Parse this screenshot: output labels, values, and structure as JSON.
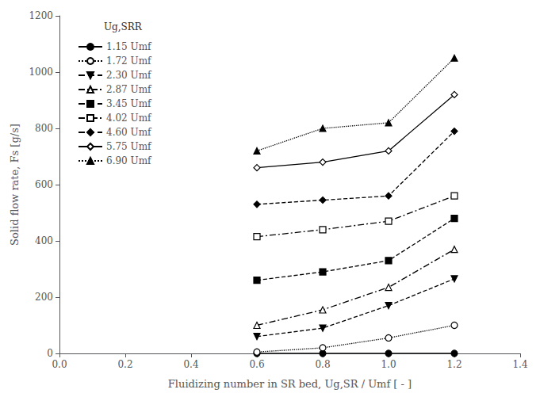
{
  "chart_data": {
    "type": "line",
    "x_label": "Fluidizing number in SR bed, Ug,SR / Umf [ - ]",
    "y_label": "Solid flow rate, Fs [g/s]",
    "annotations": [
      {
        "text": "Ug,SRR"
      }
    ],
    "x": [
      0.6,
      0.8,
      1.0,
      1.2
    ],
    "series": [
      {
        "name": "1.15 Umf",
        "color": "black",
        "marker": "circle",
        "line_style": "solid",
        "values": [
          0,
          0,
          0,
          0
        ]
      },
      {
        "name": "1.72 Umf",
        "color": "black",
        "marker": "circle_open",
        "line_style": "dotted",
        "values": [
          5,
          20,
          55,
          100
        ]
      },
      {
        "name": "2.30 Umf",
        "color": "black",
        "marker": "triangle_down",
        "line_style": "dashed",
        "values": [
          60,
          90,
          170,
          265
        ]
      },
      {
        "name": "2.87 Umf",
        "color": "black",
        "marker": "triangle_open",
        "line_style": "dashdot",
        "values": [
          100,
          155,
          235,
          370
        ]
      },
      {
        "name": "3.45 Umf",
        "color": "black",
        "marker": "square",
        "line_style": "dashed",
        "values": [
          260,
          290,
          330,
          480
        ]
      },
      {
        "name": "4.02 Umf",
        "color": "black",
        "marker": "square_open",
        "line_style": "dashdot",
        "values": [
          415,
          440,
          470,
          560
        ]
      },
      {
        "name": "4.60 Umf",
        "color": "black",
        "marker": "diamond",
        "line_style": "dashed",
        "values": [
          530,
          545,
          560,
          790
        ]
      },
      {
        "name": "5.75 Umf",
        "color": "black",
        "marker": "diamond_open",
        "line_style": "solid",
        "values": [
          660,
          680,
          720,
          920
        ]
      },
      {
        "name": "6.90 Umf",
        "color": "black",
        "marker": "triangle",
        "line_style": "dotted",
        "values": [
          720,
          800,
          820,
          1050
        ]
      }
    ],
    "xlim": [
      0.0,
      1.4
    ],
    "xticks": [
      {
        "value": 0.0,
        "label": "0.0"
      },
      0.2,
      0.4,
      0.6,
      0.8,
      {
        "value": 1.0,
        "label": "1.0"
      },
      1.2,
      1.4
    ],
    "ylim": [
      0,
      1200
    ],
    "yticks": [
      0,
      200,
      400,
      600,
      800,
      1000,
      1200
    ],
    "grid": false,
    "legend": "upper left"
  }
}
